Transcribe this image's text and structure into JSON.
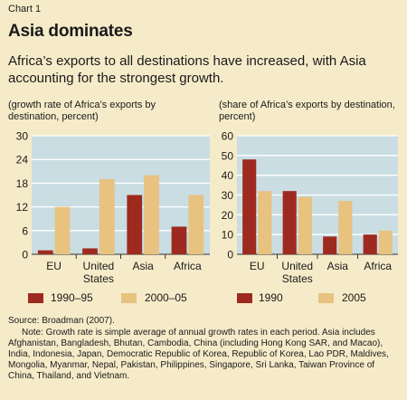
{
  "header": {
    "chart_label": "Chart 1",
    "title": "Asia dominates",
    "subtitle": "Africa’s exports to all destinations have increased, with Asia accounting for the strongest growth."
  },
  "colors": {
    "panel": "#c9dde3",
    "series1": "#9e2a1f",
    "series2": "#e8c27f",
    "grid": "#ffffff",
    "background": "#f6ebc9"
  },
  "chart_data": [
    {
      "type": "bar",
      "ylabel": "(growth rate of Africa’s exports by destination, percent)",
      "categories": [
        "EU",
        "United States",
        "Asia",
        "Africa"
      ],
      "series": [
        {
          "name": "1990–95",
          "values": [
            1,
            1.5,
            15,
            7
          ]
        },
        {
          "name": "2000–05",
          "values": [
            12,
            19,
            20,
            15
          ]
        }
      ],
      "ylim": [
        0,
        30
      ],
      "yticks": [
        0,
        6,
        12,
        18,
        24,
        30
      ],
      "grid": true,
      "legend": "bottom"
    },
    {
      "type": "bar",
      "ylabel": "(share of Africa’s exports by destination, percent)",
      "categories": [
        "EU",
        "United States",
        "Asia",
        "Africa"
      ],
      "series": [
        {
          "name": "1990",
          "values": [
            48,
            32,
            9,
            10
          ]
        },
        {
          "name": "2005",
          "values": [
            32,
            29,
            27,
            12
          ]
        }
      ],
      "ylim": [
        0,
        60
      ],
      "yticks": [
        0,
        10,
        20,
        30,
        40,
        50,
        60
      ],
      "grid": true,
      "legend": "bottom"
    }
  ],
  "footer": {
    "source": "Source: Broadman (2007).",
    "note": "Note: Growth rate is simple average of annual growth rates in each period. Asia includes Afghanistan, Bangladesh, Bhutan, Cambodia, China (including Hong Kong SAR, and Macao), India, Indonesia, Japan, Democratic Republic of Korea, Republic of Korea, Lao PDR, Maldives, Mongolia, Myanmar, Nepal, Pakistan, Philippines, Singapore, Sri Lanka, Taiwan Province of China, Thailand, and Vietnam."
  }
}
